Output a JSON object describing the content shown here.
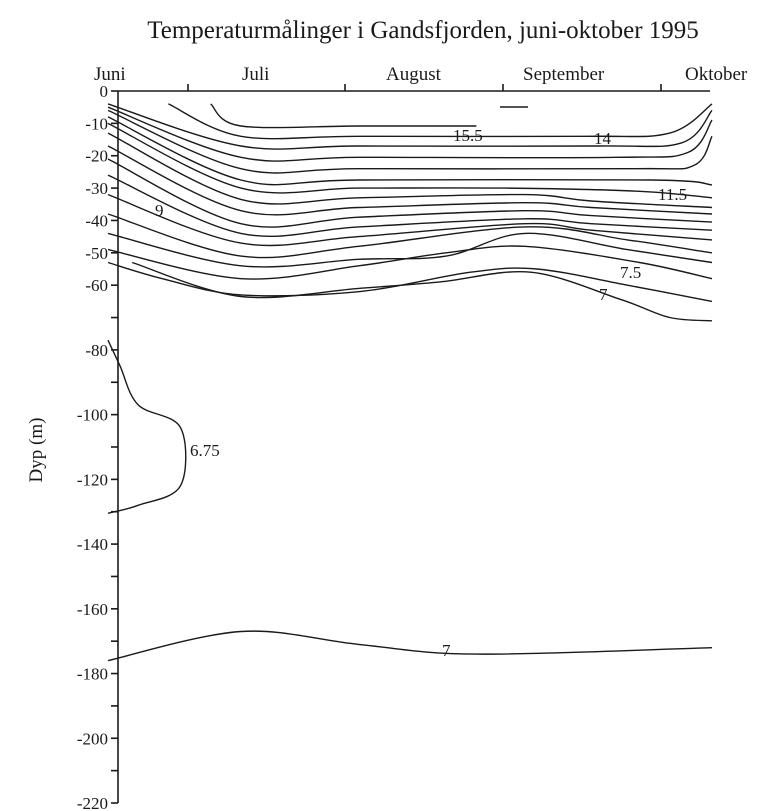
{
  "chart_data": {
    "type": "contour",
    "title": "Temperaturmålinger i Gandsfjorden, juni-oktober 1995",
    "ylabel": "Dyp (m)",
    "xlabel": "",
    "months": [
      "Juni",
      "Juli",
      "August",
      "September",
      "Oktober"
    ],
    "ylim": [
      -220,
      0
    ],
    "yticks_labeled": [
      0,
      -10,
      -20,
      -30,
      -40,
      -50,
      -60,
      -80,
      -100,
      -120,
      -140,
      -160,
      -180,
      -200,
      -220
    ],
    "yticks_minor": [
      -70,
      -90,
      -110,
      -130,
      -150,
      -170,
      -190,
      -210
    ],
    "contour_labels": [
      "15.5",
      "14",
      "11.5",
      "9",
      "7.5",
      "7",
      "6.75",
      "7"
    ],
    "upper_isotherms": [
      {
        "label": "15.5",
        "points": [
          [
            0.61,
            -10.8
          ],
          [
            0.415,
            -10.8
          ],
          [
            0.22,
            -10.8
          ],
          [
            0.17,
            -4
          ]
        ]
      },
      {
        "label": "",
        "points": [
          [
            1.0,
            -4
          ],
          [
            0.93,
            -13
          ],
          [
            0.79,
            -14
          ],
          [
            0.415,
            -14
          ],
          [
            0.22,
            -14
          ],
          [
            0.1,
            -4
          ]
        ]
      },
      {
        "label": "14",
        "points": [
          [
            1.0,
            -6
          ],
          [
            0.95,
            -16
          ],
          [
            0.81,
            -17
          ],
          [
            0.415,
            -17
          ],
          [
            0.22,
            -17
          ],
          [
            0.0,
            -4
          ]
        ]
      },
      {
        "label": "",
        "points": [
          [
            1.0,
            -9
          ],
          [
            0.96,
            -19
          ],
          [
            0.84,
            -20.5
          ],
          [
            0.415,
            -20.5
          ],
          [
            0.22,
            -20.5
          ],
          [
            0.0,
            -5
          ]
        ]
      },
      {
        "label": "",
        "points": [
          [
            1.0,
            -14
          ],
          [
            0.97,
            -23
          ],
          [
            0.87,
            -24
          ],
          [
            0.415,
            -24
          ],
          [
            0.22,
            -24
          ],
          [
            0.0,
            -6
          ]
        ]
      },
      {
        "label": "",
        "points": [
          [
            1.0,
            -29
          ],
          [
            0.9,
            -27.5
          ],
          [
            0.415,
            -27.5
          ],
          [
            0.22,
            -27.5
          ],
          [
            0.0,
            -8
          ]
        ]
      },
      {
        "label": "11.5",
        "points": [
          [
            1.0,
            -33
          ],
          [
            0.88,
            -31
          ],
          [
            0.66,
            -30
          ],
          [
            0.415,
            -30
          ],
          [
            0.22,
            -30
          ],
          [
            0.0,
            -10
          ]
        ]
      },
      {
        "label": "",
        "points": [
          [
            1.0,
            -36
          ],
          [
            0.8,
            -34
          ],
          [
            0.69,
            -32
          ],
          [
            0.415,
            -33
          ],
          [
            0.22,
            -33.5
          ],
          [
            0.0,
            -13
          ]
        ]
      },
      {
        "label": "9",
        "points": [
          [
            1.0,
            -38
          ],
          [
            0.8,
            -36
          ],
          [
            0.69,
            -34.5
          ],
          [
            0.415,
            -36
          ],
          [
            0.22,
            -37
          ],
          [
            0.0,
            -17
          ]
        ]
      },
      {
        "label": "",
        "points": [
          [
            1.0,
            -40.5
          ],
          [
            0.8,
            -38.5
          ],
          [
            0.69,
            -37
          ],
          [
            0.415,
            -39
          ],
          [
            0.22,
            -41
          ],
          [
            0.0,
            -21
          ]
        ]
      },
      {
        "label": "",
        "points": [
          [
            1.0,
            -43
          ],
          [
            0.8,
            -41
          ],
          [
            0.69,
            -39.5
          ],
          [
            0.415,
            -42
          ],
          [
            0.22,
            -44
          ],
          [
            0.0,
            -26
          ]
        ]
      },
      {
        "label": "",
        "points": [
          [
            1.0,
            -46
          ],
          [
            0.8,
            -43
          ],
          [
            0.69,
            -41
          ],
          [
            0.415,
            -45
          ],
          [
            0.22,
            -47
          ],
          [
            0.0,
            -32
          ]
        ]
      },
      {
        "label": "7.5",
        "points": [
          [
            1.0,
            -50
          ],
          [
            0.86,
            -46
          ],
          [
            0.69,
            -42
          ],
          [
            0.415,
            -48
          ],
          [
            0.22,
            -51
          ],
          [
            0.0,
            -38
          ]
        ]
      },
      {
        "label": "",
        "points": [
          [
            1.0,
            -53
          ],
          [
            0.86,
            -49
          ],
          [
            0.69,
            -44
          ],
          [
            0.56,
            -51
          ],
          [
            0.415,
            -52
          ],
          [
            0.22,
            -54
          ],
          [
            0.0,
            -44
          ]
        ]
      },
      {
        "label": "",
        "points": [
          [
            1.0,
            -58
          ],
          [
            0.88,
            -53
          ],
          [
            0.69,
            -48
          ],
          [
            0.56,
            -50
          ],
          [
            0.415,
            -54
          ],
          [
            0.22,
            -58
          ],
          [
            0.0,
            -49
          ]
        ]
      }
    ],
    "isotherm_7_upper": [
      [
        1.0,
        -65
      ],
      [
        0.86,
        -60
      ],
      [
        0.71,
        -55
      ],
      [
        0.6,
        -56
      ],
      [
        0.415,
        -62
      ],
      [
        0.22,
        -63
      ],
      [
        0.09,
        -58
      ],
      [
        0.0,
        -53
      ]
    ],
    "isotherm_7_lower": [
      [
        1.0,
        -71
      ],
      [
        0.93,
        -70
      ],
      [
        0.85,
        -64.5
      ],
      [
        0.7,
        -56
      ],
      [
        0.55,
        -59
      ],
      [
        0.415,
        -61
      ],
      [
        0.22,
        -63.5
      ],
      [
        0.04,
        -53
      ]
    ],
    "isotherm_6_75": [
      [
        0.0,
        -77
      ],
      [
        0.02,
        -85
      ],
      [
        0.05,
        -97
      ],
      [
        0.12,
        -104
      ],
      [
        0.12,
        -122
      ],
      [
        0.05,
        -128
      ],
      [
        0.0,
        -130.5
      ]
    ],
    "isotherm_7_deep": [
      [
        0.0,
        -176
      ],
      [
        0.22,
        -167
      ],
      [
        0.415,
        -171
      ],
      [
        0.61,
        -174
      ],
      [
        1.0,
        -172
      ]
    ]
  }
}
